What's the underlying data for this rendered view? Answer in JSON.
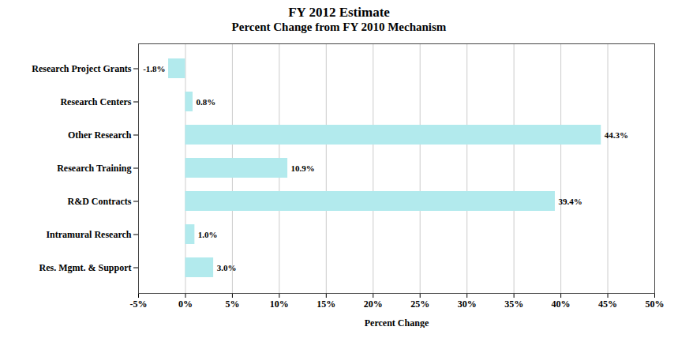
{
  "chart_data": {
    "type": "bar",
    "orientation": "horizontal",
    "title": "FY 2012 Estimate",
    "subtitle": "Percent Change from FY 2010 Mechanism",
    "xlabel": "Percent Change",
    "categories": [
      "Research Project Grants",
      "Research Centers",
      "Other Research",
      "Research Training",
      "R&D Contracts",
      "Intramural Research",
      "Res. Mgmt. & Support"
    ],
    "values": [
      -1.8,
      0.8,
      44.3,
      10.9,
      39.4,
      1.0,
      3.0
    ],
    "value_labels": [
      "-1.8%",
      "0.8%",
      "44.3%",
      "10.9%",
      "39.4%",
      "1.0%",
      "3.0%"
    ],
    "data_labels": true,
    "color": "#b2eaed",
    "xlim": [
      -5,
      50
    ],
    "xticks": [
      {
        "value": -5,
        "label": "-5%"
      },
      {
        "value": 0,
        "label": "0%"
      },
      {
        "value": 5,
        "label": "5%"
      },
      {
        "value": 10,
        "label": "10%"
      },
      {
        "value": 15,
        "label": "15%"
      },
      {
        "value": 20,
        "label": "20%"
      },
      {
        "value": 25,
        "label": "25%"
      },
      {
        "value": 30,
        "label": "30%"
      },
      {
        "value": 35,
        "label": "35%"
      },
      {
        "value": 40,
        "label": "40%"
      },
      {
        "value": 45,
        "label": "45%"
      },
      {
        "value": 50,
        "label": "50%"
      }
    ],
    "grid": true
  }
}
